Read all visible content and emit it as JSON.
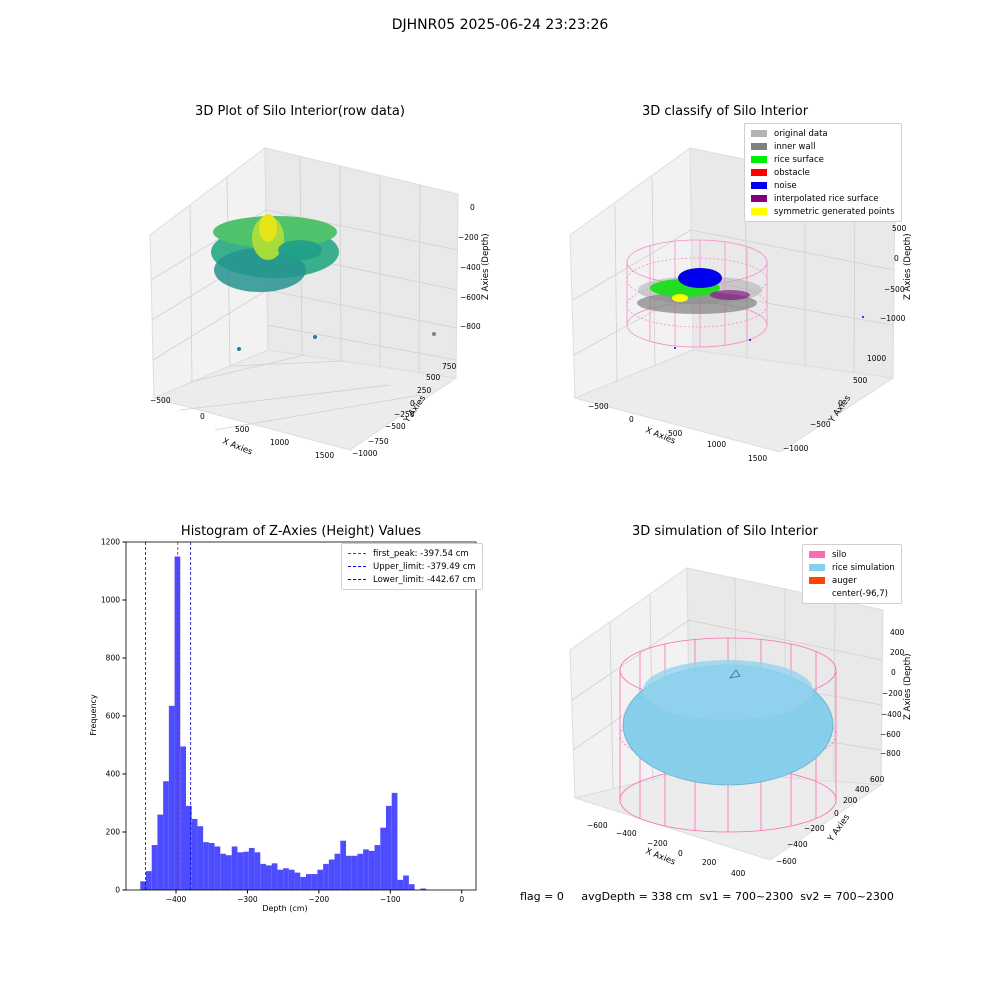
{
  "suptitle": "DJHNR05 2025-06-24 23:23:26",
  "status_text": "flag = 0     avgDepth = 338 cm  sv1 = 700~2300  sv2 = 700~2300",
  "plot_raw": {
    "title": "3D Plot of Silo Interior(row data)",
    "xlabel": "X Axies",
    "ylabel": "Y Axies",
    "zlabel": "Z Axies (Depth)",
    "xticks": [
      "−500",
      "0",
      "500",
      "1000",
      "1500"
    ],
    "yticks": [
      "−1000",
      "−750",
      "−500",
      "−250",
      "0",
      "250",
      "500",
      "750"
    ],
    "zticks": [
      "0",
      "−200",
      "−400",
      "−600",
      "−800"
    ]
  },
  "plot_classify": {
    "title": "3D classify of Silo Interior",
    "xlabel": "X Axies",
    "ylabel": "Y Axies",
    "zlabel": "Z Axies (Depth)",
    "xticks": [
      "−500",
      "0",
      "500",
      "1000",
      "1500"
    ],
    "yticks": [
      "−1000",
      "−500",
      "0",
      "500",
      "1000"
    ],
    "zticks": [
      "500",
      "0",
      "−500",
      "−1000"
    ],
    "legend": [
      {
        "label": "original data",
        "color": "#b3b3b3"
      },
      {
        "label": "inner wall",
        "color": "#808080"
      },
      {
        "label": "rice surface",
        "color": "#00ee00"
      },
      {
        "label": "obstacle",
        "color": "#ff0000"
      },
      {
        "label": "noise",
        "color": "#0000ee"
      },
      {
        "label": "interpolated rice surface",
        "color": "#800080"
      },
      {
        "label": "symmetric generated points",
        "color": "#ffff00"
      }
    ]
  },
  "histogram": {
    "title": "Histogram of Z-Axies (Height) Values",
    "xlabel": "Depth (cm)",
    "ylabel": "Frequency",
    "bar_color": "#4d4dff",
    "legend": [
      {
        "label": "first_peak: -397.54 cm",
        "color": "#ff0000"
      },
      {
        "label": "Upper_limit: -379.49 cm",
        "color": "#0000cc"
      },
      {
        "label": "Lower_limit: -442.67 cm",
        "color": "#0000cc"
      }
    ]
  },
  "plot_sim": {
    "title": "3D simulation of Silo Interior",
    "xlabel": "X Axies",
    "ylabel": "Y Axies",
    "zlabel": "Z Axies (Depth)",
    "xticks": [
      "−600",
      "−400",
      "−200",
      "0",
      "200",
      "400"
    ],
    "yticks": [
      "−600",
      "−400",
      "−200",
      "0",
      "200",
      "400",
      "600"
    ],
    "zticks": [
      "400",
      "200",
      "0",
      "−200",
      "−400",
      "−600",
      "−800"
    ],
    "legend": [
      {
        "label": "silo",
        "color": "#ff69b4"
      },
      {
        "label": "rice simulation",
        "color": "#87ceeb"
      },
      {
        "label": "auger",
        "color": "#ff4500"
      },
      {
        "label": "center(-96,7)",
        "color": ""
      }
    ]
  },
  "chart_data": {
    "type": "bar",
    "title": "Histogram of Z-Axies (Height) Values",
    "xlabel": "Depth (cm)",
    "ylabel": "Frequency",
    "xlim": [
      -470,
      20
    ],
    "ylim": [
      0,
      1200
    ],
    "x_ticks": [
      -400,
      -300,
      -200,
      -100,
      0
    ],
    "y_ticks": [
      0,
      200,
      400,
      600,
      800,
      1000,
      1200
    ],
    "bin_width": 8,
    "bin_start": -450,
    "values": [
      30,
      65,
      155,
      260,
      375,
      635,
      1150,
      495,
      290,
      245,
      220,
      165,
      162,
      150,
      125,
      120,
      150,
      130,
      132,
      145,
      130,
      90,
      85,
      92,
      70,
      75,
      70,
      60,
      45,
      55,
      55,
      70,
      90,
      105,
      125,
      170,
      118,
      118,
      125,
      140,
      135,
      155,
      215,
      290,
      335,
      35,
      50,
      20,
      0,
      5,
      0
    ],
    "vlines": [
      {
        "name": "first_peak",
        "x": -397.54,
        "style": "dashed",
        "color": "#ff0000"
      },
      {
        "name": "Upper_limit",
        "x": -379.49,
        "style": "dashed",
        "color": "#0000cc"
      },
      {
        "name": "Lower_limit",
        "x": -442.67,
        "style": "dashed",
        "color": "#0000cc"
      }
    ],
    "legend_position": "top-right",
    "grid": false
  }
}
